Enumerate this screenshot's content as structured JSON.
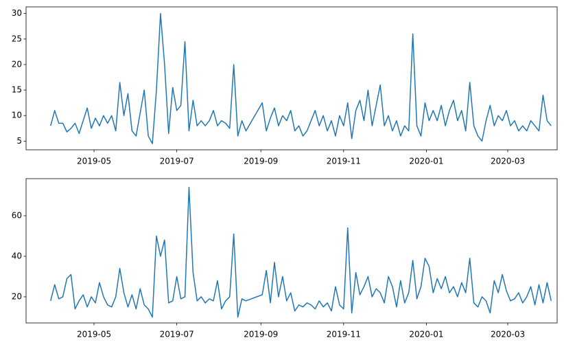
{
  "chart_data": [
    {
      "type": "line",
      "color": "#1f77b4",
      "x": [
        -2,
        1,
        4,
        7,
        10,
        13,
        16,
        19,
        22,
        25,
        28,
        31,
        34,
        37,
        40,
        43,
        46,
        49,
        52,
        55,
        58,
        61,
        64,
        67,
        70,
        73,
        76,
        79,
        82,
        85,
        88,
        91,
        94,
        97,
        100,
        103,
        106,
        109,
        112,
        115,
        118,
        121,
        124,
        127,
        130,
        133,
        136,
        139,
        142,
        154,
        157,
        160,
        163,
        166,
        169,
        172,
        175,
        178,
        181,
        184,
        187,
        190,
        193,
        196,
        199,
        202,
        205,
        208,
        211,
        214,
        217,
        220,
        223,
        226,
        229,
        232,
        235,
        238,
        241,
        244,
        247,
        250,
        253,
        256,
        259,
        262,
        265,
        268,
        271,
        274,
        277,
        280,
        283,
        286,
        289,
        292,
        295,
        298,
        301,
        304,
        307,
        310,
        313,
        316,
        319,
        322,
        325,
        328,
        331,
        334,
        337,
        340,
        343,
        346,
        349,
        352,
        355,
        358,
        361,
        364,
        367
      ],
      "values": [
        8,
        11,
        8.5,
        8.5,
        6.8,
        7.5,
        8.5,
        6.5,
        9,
        11.5,
        7.5,
        9.5,
        8,
        10,
        8.5,
        10,
        7,
        16.5,
        10,
        14.3,
        7,
        6,
        10.5,
        15,
        6,
        4.5,
        15,
        30,
        20,
        6.5,
        15.5,
        11,
        12,
        24.5,
        7,
        13,
        8,
        9,
        8,
        9,
        11,
        8,
        9,
        8.5,
        7.5,
        20,
        6,
        9,
        7,
        12.5,
        7,
        9.5,
        11.5,
        8,
        10,
        9,
        11,
        7,
        8,
        6,
        7,
        9,
        11,
        8,
        10,
        7,
        9,
        6,
        10,
        8,
        12.5,
        5.5,
        11,
        13,
        9,
        15,
        8,
        12,
        16,
        8,
        10,
        7,
        9,
        6,
        8,
        7,
        26,
        8,
        6,
        12.5,
        9,
        11,
        9,
        12,
        8,
        11,
        13,
        9,
        11,
        7,
        16.5,
        8,
        6,
        5,
        9,
        12,
        8,
        10,
        9,
        11,
        8,
        9,
        7,
        8,
        7,
        9,
        8,
        7,
        14,
        9,
        8
      ],
      "xlim": [
        -20.1,
        371.4
      ],
      "xticks": [
        {
          "value": 30,
          "label": "2019-05"
        },
        {
          "value": 91,
          "label": "2019-07"
        },
        {
          "value": 153,
          "label": "2019-09"
        },
        {
          "value": 214,
          "label": "2019-11"
        },
        {
          "value": 275,
          "label": "2020-01"
        },
        {
          "value": 335,
          "label": "2020-03"
        }
      ],
      "ylim": [
        3.3,
        31.3
      ],
      "yticks": [
        5,
        10,
        15,
        20,
        25,
        30
      ]
    },
    {
      "type": "line",
      "color": "#1f77b4",
      "x": [
        -2,
        1,
        4,
        7,
        10,
        13,
        16,
        19,
        22,
        25,
        28,
        31,
        34,
        37,
        40,
        43,
        46,
        49,
        52,
        55,
        58,
        61,
        64,
        67,
        70,
        73,
        76,
        79,
        82,
        85,
        88,
        91,
        94,
        97,
        100,
        103,
        106,
        109,
        112,
        115,
        118,
        121,
        124,
        127,
        130,
        133,
        136,
        139,
        142,
        154,
        157,
        160,
        163,
        166,
        169,
        172,
        175,
        178,
        181,
        184,
        187,
        190,
        193,
        196,
        199,
        202,
        205,
        208,
        211,
        214,
        217,
        220,
        223,
        226,
        229,
        232,
        235,
        238,
        241,
        244,
        247,
        250,
        253,
        256,
        259,
        262,
        265,
        268,
        271,
        274,
        277,
        280,
        283,
        286,
        289,
        292,
        295,
        298,
        301,
        304,
        307,
        310,
        313,
        316,
        319,
        322,
        325,
        328,
        331,
        334,
        337,
        340,
        343,
        346,
        349,
        352,
        355,
        358,
        361,
        364,
        367
      ],
      "values": [
        18,
        26,
        19,
        20,
        29,
        31,
        14,
        18,
        21,
        15,
        20,
        17,
        27,
        20,
        16,
        15,
        20,
        34,
        22,
        15,
        21,
        14,
        24,
        16,
        14,
        10,
        50,
        40,
        48,
        17,
        18,
        30,
        19,
        20,
        74,
        32,
        18,
        20,
        17,
        19,
        18,
        28,
        14,
        18,
        20,
        51,
        10,
        19,
        18,
        21,
        33,
        17,
        37,
        20,
        30,
        18,
        22,
        13,
        16,
        15,
        17,
        16,
        14,
        18,
        15,
        17,
        13,
        25,
        16,
        14,
        54,
        12,
        32,
        21,
        25,
        30,
        20,
        24,
        22,
        17,
        30,
        25,
        15,
        28,
        17,
        22,
        38,
        19,
        25,
        39,
        35,
        22,
        29,
        24,
        30,
        22,
        25,
        20,
        27,
        22,
        39,
        17,
        15,
        20,
        18,
        12,
        28,
        22,
        31,
        23,
        18,
        19,
        22,
        17,
        20,
        25,
        16,
        26,
        17,
        27,
        18
      ],
      "xlim": [
        -20.1,
        371.4
      ],
      "xticks": [
        {
          "value": 30,
          "label": "2019-05"
        },
        {
          "value": 91,
          "label": "2019-07"
        },
        {
          "value": 153,
          "label": "2019-09"
        },
        {
          "value": 214,
          "label": "2019-11"
        },
        {
          "value": 275,
          "label": "2020-01"
        },
        {
          "value": 335,
          "label": "2020-03"
        }
      ],
      "ylim": [
        7.1,
        78.3
      ],
      "yticks": [
        20,
        40,
        60
      ]
    }
  ]
}
